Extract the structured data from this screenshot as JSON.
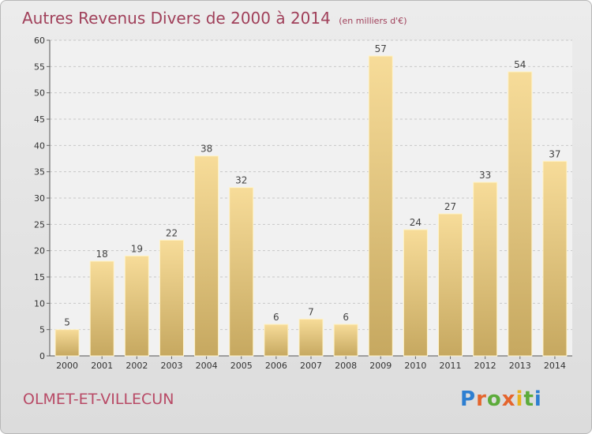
{
  "header": {
    "title": "Autres Revenus Divers de 2000 à 2014",
    "subtitle": "(en milliers d'€)"
  },
  "footer": {
    "place": "OLMET-ET-VILLECUN",
    "logo_text": "Proxiti"
  },
  "colors": {
    "title": "#a0405a",
    "bar_light": "#f7dc99",
    "bar_dark": "#c6a860",
    "grid": "#c8c8c8"
  },
  "chart_data": {
    "type": "bar",
    "title": "Autres Revenus Divers de 2000 à 2014",
    "subtitle": "(en milliers d'€)",
    "categories": [
      "2000",
      "2001",
      "2002",
      "2003",
      "2004",
      "2005",
      "2006",
      "2007",
      "2008",
      "2009",
      "2010",
      "2011",
      "2012",
      "2013",
      "2014"
    ],
    "values": [
      5,
      18,
      19,
      22,
      38,
      32,
      6,
      7,
      6,
      57,
      24,
      27,
      33,
      54,
      37
    ],
    "ylim": [
      0,
      60
    ],
    "yticks": [
      0,
      5,
      10,
      15,
      20,
      25,
      30,
      35,
      40,
      45,
      50,
      55,
      60
    ],
    "grid": true,
    "data_labels": true
  }
}
